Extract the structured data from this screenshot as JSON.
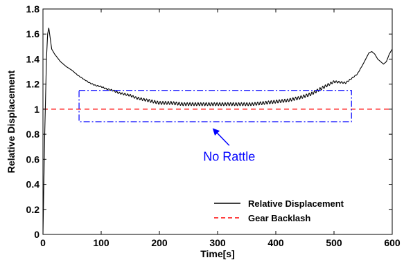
{
  "chart_data": {
    "type": "line",
    "title": "",
    "xlabel": "Time[s]",
    "ylabel": "Relative Displacement",
    "xlim": [
      0,
      600
    ],
    "ylim": [
      0,
      1.8
    ],
    "xticks": [
      0,
      100,
      200,
      300,
      400,
      500,
      600
    ],
    "yticks": [
      0,
      0.2,
      0.4,
      0.6,
      0.8,
      1,
      1.2,
      1.4,
      1.6,
      1.8
    ],
    "grid": false,
    "legend_position": "bottom-right",
    "series": [
      {
        "name": "Relative Displacement",
        "color": "#000000",
        "style": "solid",
        "oscillation": true,
        "x": [
          0,
          3,
          6,
          8,
          10,
          15,
          20,
          30,
          40,
          50,
          60,
          70,
          80,
          90,
          100,
          110,
          120,
          130,
          140,
          150,
          160,
          170,
          180,
          190,
          200,
          220,
          240,
          260,
          280,
          300,
          320,
          340,
          360,
          380,
          400,
          420,
          440,
          460,
          480,
          500,
          520,
          540,
          550,
          560,
          565,
          570,
          575,
          580,
          585,
          590,
          595,
          600
        ],
        "y": [
          0.0,
          0.8,
          1.4,
          1.6,
          1.65,
          1.48,
          1.44,
          1.38,
          1.34,
          1.31,
          1.27,
          1.24,
          1.21,
          1.19,
          1.18,
          1.16,
          1.15,
          1.13,
          1.12,
          1.11,
          1.09,
          1.08,
          1.07,
          1.06,
          1.05,
          1.05,
          1.04,
          1.04,
          1.04,
          1.04,
          1.04,
          1.04,
          1.04,
          1.05,
          1.06,
          1.07,
          1.09,
          1.12,
          1.17,
          1.22,
          1.21,
          1.28,
          1.36,
          1.45,
          1.46,
          1.44,
          1.4,
          1.38,
          1.36,
          1.38,
          1.44,
          1.48
        ]
      },
      {
        "name": "Gear Backlash",
        "color": "#ff0000",
        "style": "dashed",
        "x": [
          0,
          600
        ],
        "y": [
          1,
          1
        ]
      }
    ],
    "annotations": [
      {
        "kind": "box",
        "x0": 62,
        "x1": 530,
        "y0": 0.9,
        "y1": 1.15,
        "color": "#0000ff",
        "style": "dash-dot"
      },
      {
        "kind": "arrow",
        "from": [
          320,
          0.71
        ],
        "to": [
          293,
          0.84
        ],
        "color": "#0000ff"
      },
      {
        "kind": "text",
        "text": "No Rattle",
        "x": 320,
        "y": 0.62,
        "color": "#0000ff"
      }
    ]
  }
}
